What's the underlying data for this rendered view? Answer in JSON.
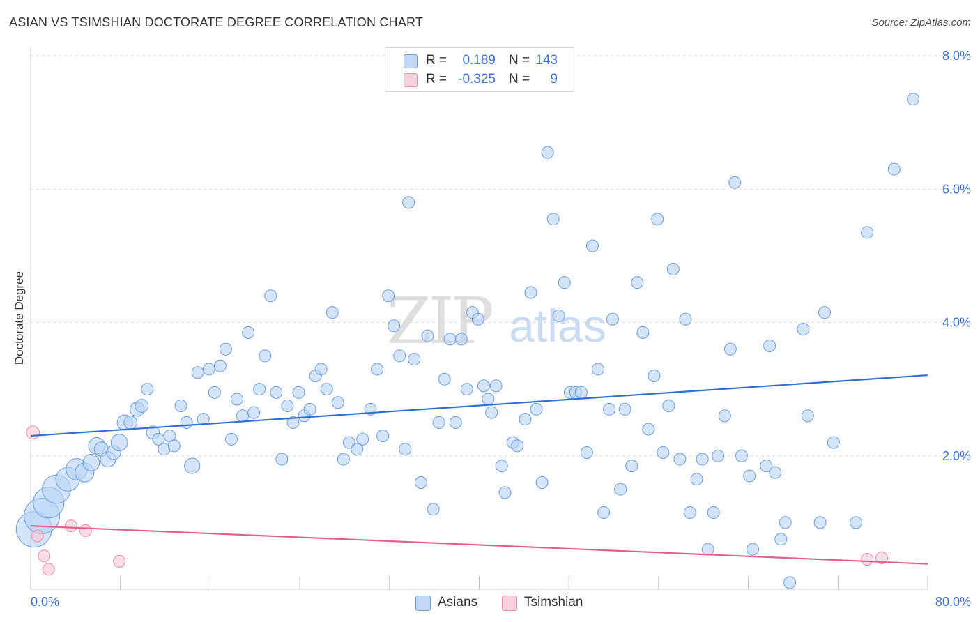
{
  "header": {
    "title": "ASIAN VS TSIMSHIAN DOCTORATE DEGREE CORRELATION CHART",
    "source": "Source: ZipAtlas.com"
  },
  "legend_top": {
    "rows": [
      {
        "r_label": "R =",
        "r_value": "0.189",
        "n_label": "N =",
        "n_value": "143",
        "color": "#a9c8f2"
      },
      {
        "r_label": "R =",
        "r_value": "-0.325",
        "n_label": "N =",
        "n_value": "9",
        "color": "#f4b8ca"
      }
    ]
  },
  "legend_bottom": {
    "items": [
      {
        "label": "Asians",
        "color": "#a9c8f2"
      },
      {
        "label": "Tsimshian",
        "color": "#f4b8ca"
      }
    ]
  },
  "watermark": {
    "zip": "ZIP",
    "atlas": "atlas"
  },
  "chart_data": {
    "type": "scatter",
    "title": "ASIAN VS TSIMSHIAN DOCTORATE DEGREE CORRELATION CHART",
    "xlabel": "",
    "ylabel": "Doctorate Degree",
    "xlim": [
      0,
      80
    ],
    "ylim": [
      0,
      8.0
    ],
    "x_tick_labels": [
      "0.0%",
      "80.0%"
    ],
    "y_ticks": [
      2.0,
      4.0,
      6.0,
      8.0
    ],
    "y_tick_labels": [
      "2.0%",
      "4.0%",
      "6.0%",
      "8.0%"
    ],
    "grid": true,
    "legend": "top-center",
    "series": [
      {
        "name": "Asians",
        "color": "#6a9be0",
        "fill": "#b8d3f5",
        "trend": {
          "x": [
            0,
            80
          ],
          "y": [
            2.3,
            3.21
          ],
          "color": "#2e6fcf"
        },
        "points": [
          [
            0.3,
            0.9,
            3
          ],
          [
            1.0,
            1.1,
            3
          ],
          [
            1.6,
            1.3,
            2.6
          ],
          [
            2.3,
            1.5,
            2.4
          ],
          [
            3.3,
            1.65,
            2
          ],
          [
            4.1,
            1.8,
            1.8
          ],
          [
            4.8,
            1.75,
            1.6
          ],
          [
            5.4,
            1.9,
            1.4
          ],
          [
            5.9,
            2.15,
            1.4
          ],
          [
            6.3,
            2.1,
            1.2
          ],
          [
            6.9,
            1.95,
            1.3
          ],
          [
            7.4,
            2.05,
            1.2
          ],
          [
            7.9,
            2.2,
            1.4
          ],
          [
            8.4,
            2.5,
            1.3
          ],
          [
            8.9,
            2.5,
            1.1
          ],
          [
            9.5,
            2.7,
            1.2
          ],
          [
            9.9,
            2.75,
            1.1
          ],
          [
            10.4,
            3.0,
            1
          ],
          [
            10.9,
            2.35,
            1.1
          ],
          [
            11.4,
            2.25,
            1
          ],
          [
            11.9,
            2.1,
            1
          ],
          [
            12.4,
            2.3,
            1
          ],
          [
            12.8,
            2.15,
            1
          ],
          [
            13.4,
            2.75,
            1
          ],
          [
            13.9,
            2.5,
            1
          ],
          [
            14.4,
            1.85,
            1.3
          ],
          [
            14.9,
            3.25,
            1
          ],
          [
            15.4,
            2.55,
            1
          ],
          [
            15.9,
            3.3,
            1
          ],
          [
            16.4,
            2.95,
            1
          ],
          [
            16.9,
            3.35,
            1
          ],
          [
            17.4,
            3.6,
            1
          ],
          [
            17.9,
            2.25,
            1
          ],
          [
            18.4,
            2.85,
            1
          ],
          [
            18.9,
            2.6,
            1
          ],
          [
            19.4,
            3.85,
            1
          ],
          [
            19.9,
            2.65,
            1
          ],
          [
            20.4,
            3.0,
            1
          ],
          [
            20.9,
            3.5,
            1
          ],
          [
            21.4,
            4.4,
            1
          ],
          [
            21.9,
            2.95,
            1
          ],
          [
            22.4,
            1.95,
            1
          ],
          [
            22.9,
            2.75,
            1
          ],
          [
            23.4,
            2.5,
            1
          ],
          [
            23.9,
            2.95,
            1
          ],
          [
            24.4,
            2.6,
            1
          ],
          [
            24.9,
            2.7,
            1
          ],
          [
            25.4,
            3.2,
            1
          ],
          [
            25.9,
            3.3,
            1
          ],
          [
            26.4,
            3.0,
            1
          ],
          [
            26.9,
            4.15,
            1
          ],
          [
            27.4,
            2.8,
            1
          ],
          [
            27.9,
            1.95,
            1
          ],
          [
            28.4,
            2.2,
            1
          ],
          [
            29.1,
            2.1,
            1
          ],
          [
            29.6,
            2.25,
            1
          ],
          [
            30.3,
            2.7,
            1
          ],
          [
            30.9,
            3.3,
            1
          ],
          [
            31.4,
            2.3,
            1
          ],
          [
            31.9,
            4.4,
            1
          ],
          [
            32.4,
            3.95,
            1
          ],
          [
            32.9,
            3.5,
            1
          ],
          [
            33.4,
            2.1,
            1
          ],
          [
            33.7,
            5.8,
            1
          ],
          [
            34.2,
            3.45,
            1
          ],
          [
            34.8,
            1.6,
            1
          ],
          [
            35.4,
            3.8,
            1
          ],
          [
            35.9,
            1.2,
            1
          ],
          [
            36.4,
            2.5,
            1
          ],
          [
            36.9,
            3.15,
            1
          ],
          [
            37.4,
            3.75,
            1
          ],
          [
            37.9,
            2.5,
            1
          ],
          [
            38.4,
            3.75,
            1
          ],
          [
            38.9,
            3.0,
            1
          ],
          [
            39.4,
            4.15,
            1
          ],
          [
            39.9,
            4.05,
            1
          ],
          [
            40.4,
            3.05,
            1
          ],
          [
            40.8,
            2.85,
            1
          ],
          [
            41.1,
            2.65,
            1
          ],
          [
            41.5,
            3.05,
            1
          ],
          [
            42.0,
            1.85,
            1
          ],
          [
            42.3,
            1.45,
            1
          ],
          [
            43.0,
            2.2,
            1
          ],
          [
            43.4,
            2.15,
            1
          ],
          [
            44.1,
            2.55,
            1
          ],
          [
            44.6,
            4.45,
            1
          ],
          [
            45.1,
            2.7,
            1
          ],
          [
            45.6,
            1.6,
            1
          ],
          [
            46.1,
            6.55,
            1
          ],
          [
            46.6,
            5.55,
            1
          ],
          [
            47.1,
            4.1,
            1
          ],
          [
            47.6,
            4.6,
            1
          ],
          [
            48.1,
            2.95,
            1
          ],
          [
            48.6,
            2.95,
            1
          ],
          [
            49.1,
            2.95,
            1
          ],
          [
            49.6,
            2.05,
            1
          ],
          [
            50.1,
            5.15,
            1
          ],
          [
            50.6,
            3.3,
            1
          ],
          [
            51.1,
            1.15,
            1
          ],
          [
            51.6,
            2.7,
            1
          ],
          [
            51.9,
            4.05,
            1
          ],
          [
            52.6,
            1.5,
            1
          ],
          [
            53.0,
            2.7,
            1
          ],
          [
            53.6,
            1.85,
            1
          ],
          [
            54.1,
            4.6,
            1
          ],
          [
            54.6,
            3.85,
            1
          ],
          [
            55.1,
            2.4,
            1
          ],
          [
            55.6,
            3.2,
            1
          ],
          [
            55.9,
            5.55,
            1
          ],
          [
            56.4,
            2.05,
            1
          ],
          [
            56.9,
            2.75,
            1
          ],
          [
            57.3,
            4.8,
            1
          ],
          [
            57.9,
            1.95,
            1
          ],
          [
            58.4,
            4.05,
            1
          ],
          [
            58.8,
            1.15,
            1
          ],
          [
            59.4,
            1.65,
            1
          ],
          [
            59.9,
            1.95,
            1
          ],
          [
            60.4,
            0.6,
            1
          ],
          [
            60.9,
            1.15,
            1
          ],
          [
            61.3,
            2.0,
            1
          ],
          [
            61.9,
            2.6,
            1
          ],
          [
            62.4,
            3.6,
            1
          ],
          [
            62.8,
            6.1,
            1
          ],
          [
            63.4,
            2.0,
            1
          ],
          [
            64.1,
            1.7,
            1
          ],
          [
            64.4,
            0.6,
            1
          ],
          [
            65.6,
            1.85,
            1
          ],
          [
            65.9,
            3.65,
            1
          ],
          [
            66.4,
            1.75,
            1
          ],
          [
            66.9,
            0.75,
            1
          ],
          [
            67.3,
            1.0,
            1
          ],
          [
            67.7,
            0.1,
            1
          ],
          [
            68.9,
            3.9,
            1
          ],
          [
            69.3,
            2.6,
            1
          ],
          [
            70.4,
            1.0,
            1
          ],
          [
            70.8,
            4.15,
            1
          ],
          [
            71.6,
            2.2,
            1
          ],
          [
            73.6,
            1.0,
            1
          ],
          [
            74.6,
            5.35,
            1
          ],
          [
            77.0,
            6.3,
            1
          ],
          [
            78.7,
            7.35,
            1
          ]
        ]
      },
      {
        "name": "Tsimshian",
        "color": "#e98aa8",
        "fill": "#f7c6d4",
        "trend": {
          "x": [
            0,
            80
          ],
          "y": [
            0.95,
            0.38
          ],
          "color": "#e0608a"
        },
        "points": [
          [
            0.2,
            2.35,
            1.1
          ],
          [
            0.6,
            0.8,
            1
          ],
          [
            1.2,
            0.5,
            1
          ],
          [
            1.6,
            0.3,
            1
          ],
          [
            3.6,
            0.95,
            1
          ],
          [
            4.9,
            0.88,
            1
          ],
          [
            7.9,
            0.42,
            1
          ],
          [
            74.6,
            0.45,
            1
          ],
          [
            75.9,
            0.47,
            1
          ]
        ]
      }
    ]
  }
}
